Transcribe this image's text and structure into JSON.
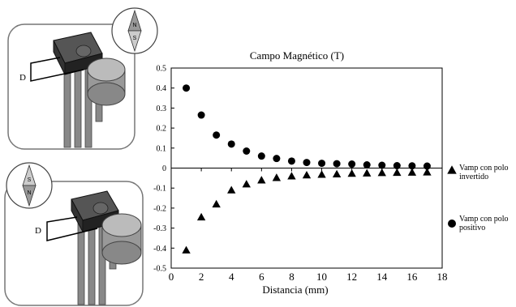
{
  "figure": {
    "sensor_top": {
      "label": "D",
      "compass": {
        "upper": "N",
        "lower": "S"
      }
    },
    "sensor_bottom": {
      "label": "D",
      "compass": {
        "upper": "S",
        "lower": "N"
      }
    }
  },
  "chart_data": {
    "type": "scatter",
    "title": "Campo Magnético (T)",
    "xlabel": "Distancia (mm)",
    "ylabel": "",
    "xlim": [
      0,
      18
    ],
    "ylim": [
      -0.5,
      0.5
    ],
    "xticks": [
      0,
      2,
      4,
      6,
      8,
      10,
      12,
      14,
      16,
      18
    ],
    "yticks": [
      0.5,
      0.4,
      0.3,
      0.2,
      0.1,
      0,
      -0.1,
      -0.2,
      -0.3,
      -0.4,
      -0.5
    ],
    "grid": false,
    "legend_position": "right",
    "series": [
      {
        "name": "Vamp con polo invertido",
        "legend_lines": [
          "Vamp con polo",
          "invertido"
        ],
        "marker": "triangle",
        "x": [
          1,
          2,
          3,
          4,
          5,
          6,
          7,
          8,
          9,
          10,
          11,
          12,
          13,
          14,
          15,
          16,
          17
        ],
        "y": [
          -0.41,
          -0.245,
          -0.18,
          -0.11,
          -0.08,
          -0.06,
          -0.048,
          -0.04,
          -0.035,
          -0.032,
          -0.03,
          -0.027,
          -0.025,
          -0.023,
          -0.022,
          -0.021,
          -0.02
        ]
      },
      {
        "name": "Vamp con polo positivo",
        "legend_lines": [
          "Vamp con polo",
          "positivo"
        ],
        "marker": "circle",
        "x": [
          1,
          2,
          3,
          4,
          5,
          6,
          7,
          8,
          9,
          10,
          11,
          12,
          13,
          14,
          15,
          16,
          17
        ],
        "y": [
          0.4,
          0.265,
          0.165,
          0.12,
          0.085,
          0.06,
          0.048,
          0.035,
          0.028,
          0.024,
          0.022,
          0.02,
          0.016,
          0.014,
          0.012,
          0.011,
          0.01
        ]
      }
    ]
  }
}
